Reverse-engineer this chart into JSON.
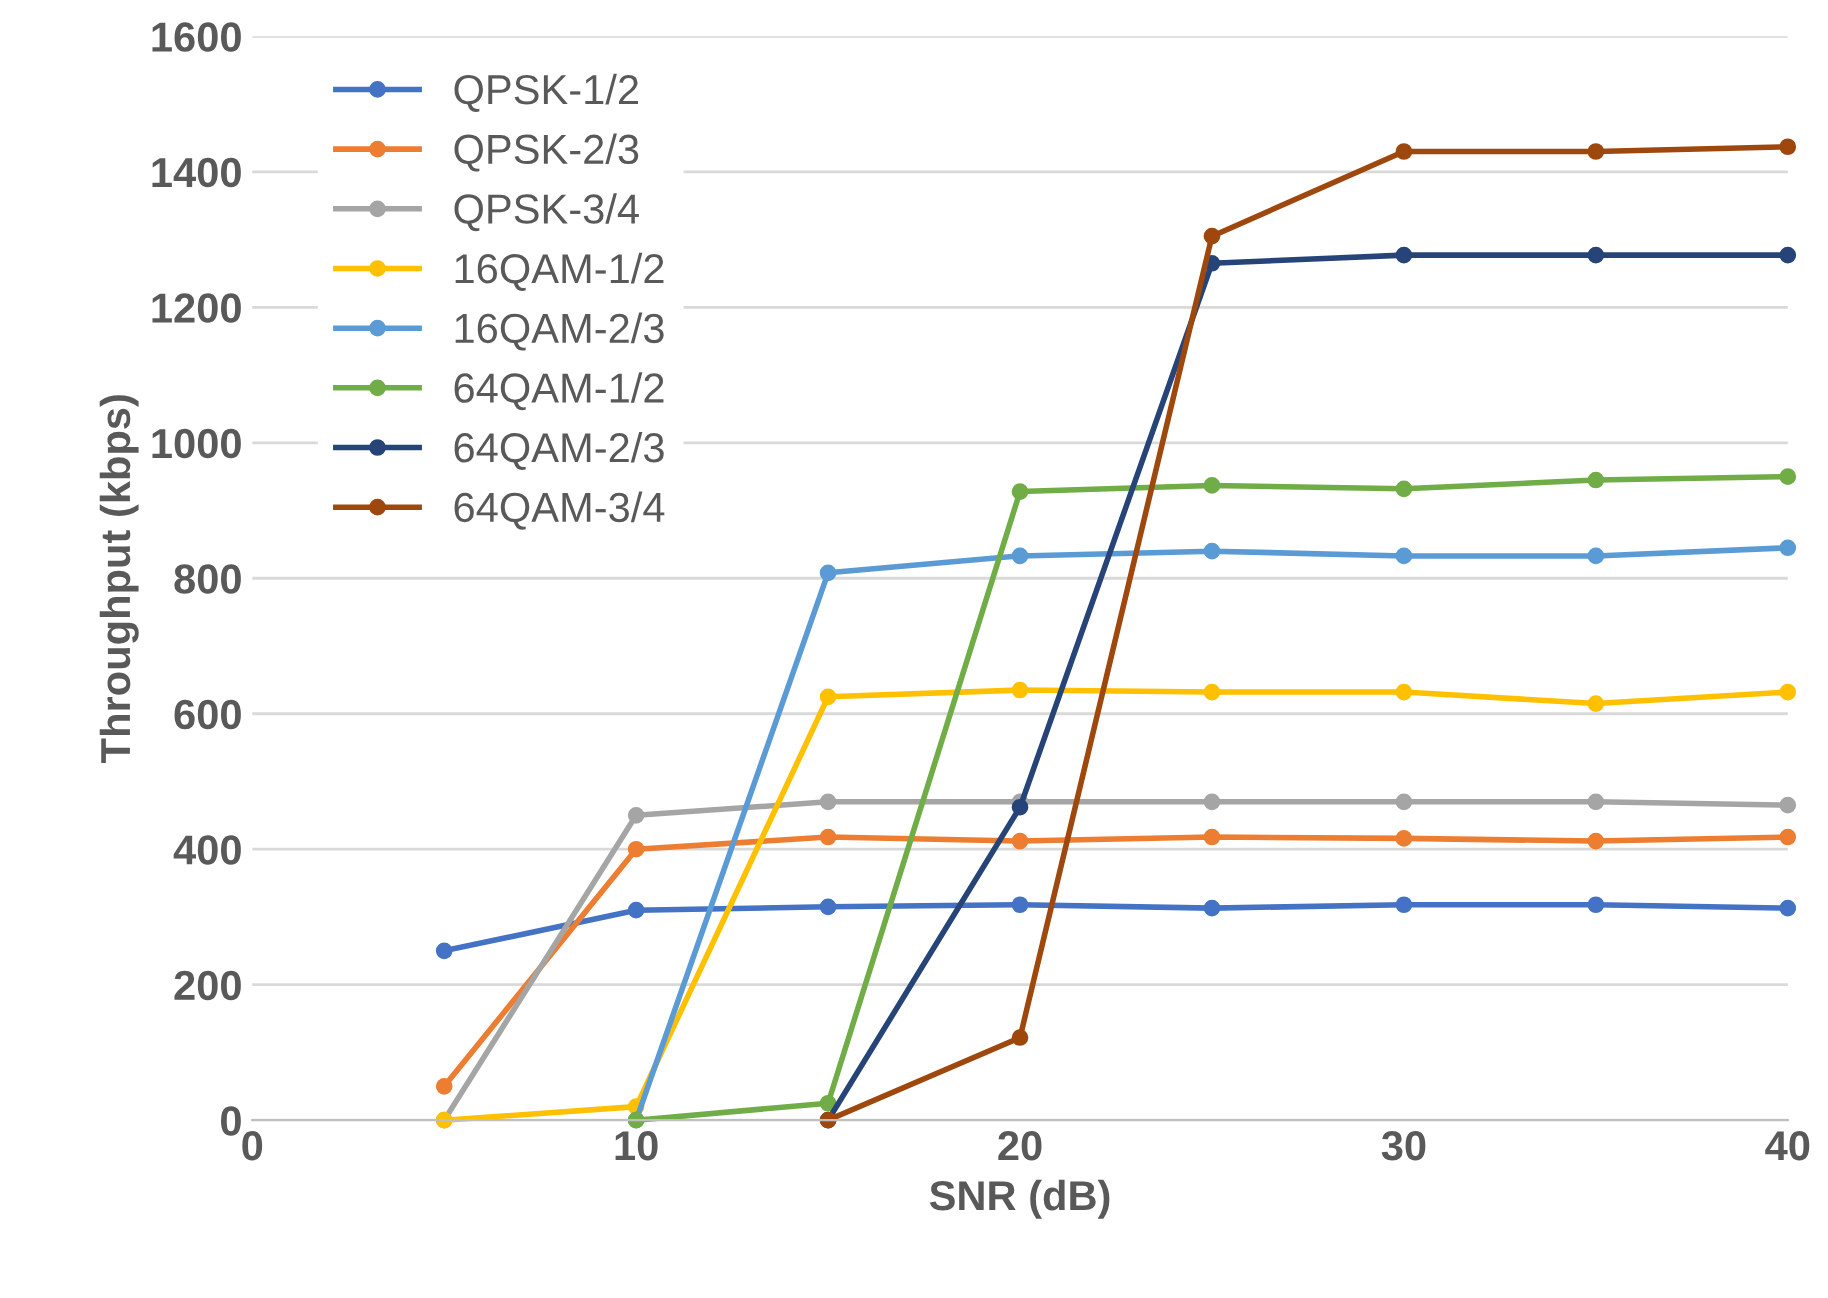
{
  "chart_data": {
    "type": "line",
    "xlabel": "SNR (dB)",
    "ylabel": "Throughput (kbps)",
    "xlim": [
      0,
      40
    ],
    "xticks": [
      0,
      10,
      20,
      30,
      40
    ],
    "ylim": [
      0,
      1600
    ],
    "yticks": [
      0,
      200,
      400,
      600,
      800,
      1000,
      1200,
      1400,
      1600
    ],
    "grid": "y",
    "legend": "top left",
    "marker": "circle",
    "line_style": "solid",
    "series": [
      {
        "name": "QPSK-1/2",
        "color": "#4472c4",
        "x": [
          5,
          10,
          15,
          20,
          25,
          30,
          35,
          40
        ],
        "values": [
          250,
          310,
          315,
          318,
          313,
          318,
          318,
          313
        ]
      },
      {
        "name": "QPSK-2/3",
        "color": "#ed7d31",
        "x": [
          5,
          10,
          15,
          20,
          25,
          30,
          35,
          40
        ],
        "values": [
          50,
          400,
          418,
          412,
          418,
          416,
          412,
          418
        ]
      },
      {
        "name": "QPSK-3/4",
        "color": "#a5a5a5",
        "x": [
          5,
          10,
          15,
          20,
          25,
          30,
          35,
          40
        ],
        "values": [
          0,
          450,
          470,
          470,
          470,
          470,
          470,
          465
        ]
      },
      {
        "name": "16QAM-1/2",
        "color": "#ffc000",
        "x": [
          5,
          10,
          15,
          20,
          25,
          30,
          35,
          40
        ],
        "values": [
          0,
          20,
          625,
          635,
          632,
          632,
          615,
          632
        ]
      },
      {
        "name": "16QAM-2/3",
        "color": "#5b9bd5",
        "x": [
          10,
          15,
          20,
          25,
          30,
          35,
          40
        ],
        "values": [
          0,
          808,
          833,
          840,
          833,
          833,
          845
        ]
      },
      {
        "name": "64QAM-1/2",
        "color": "#70ad47",
        "x": [
          10,
          15,
          20,
          25,
          30,
          35,
          40
        ],
        "values": [
          0,
          25,
          928,
          937,
          932,
          945,
          950
        ]
      },
      {
        "name": "64QAM-2/3",
        "color": "#264478",
        "x": [
          15,
          20,
          25,
          30,
          35,
          40
        ],
        "values": [
          0,
          462,
          1265,
          1277,
          1277,
          1277
        ]
      },
      {
        "name": "64QAM-3/4",
        "color": "#9e480e",
        "x": [
          15,
          20,
          25,
          30,
          35,
          40
        ],
        "values": [
          0,
          122,
          1305,
          1430,
          1430,
          1437
        ]
      }
    ]
  }
}
